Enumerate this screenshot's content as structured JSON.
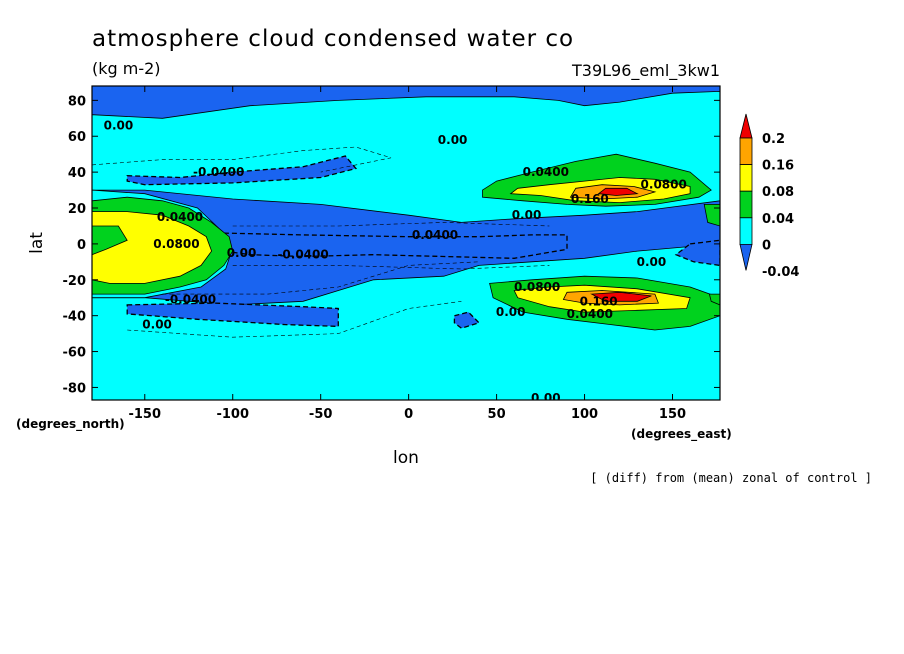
{
  "header": {
    "title": "atmosphere cloud condensed water co",
    "units": "(kg m-2)",
    "run_id": "T39L96_eml_3kw1",
    "note": "[ (diff) from (mean) zonal of control ]"
  },
  "colors": {
    "level_fills": [
      "#1a64f0",
      "#00ffff",
      "#00d21e",
      "#ffff00",
      "#ffa500",
      "#f00000"
    ],
    "ocean_bg": "#1a64f0"
  },
  "chart_data": {
    "type": "heatmap",
    "title": "atmosphere cloud condensed water co",
    "subtitle": "(kg m-2)",
    "xlabel": "lon",
    "ylabel": "lat",
    "xlim": [
      -180,
      177
    ],
    "ylim": [
      -87,
      88
    ],
    "x_ticks": [
      -150,
      -100,
      -50,
      0,
      50,
      100,
      150
    ],
    "y_ticks": [
      80,
      60,
      40,
      20,
      0,
      -20,
      -40,
      -60,
      -80
    ],
    "x_tick_labels": [
      "-150",
      "-100",
      "-50",
      "0",
      "50",
      "100",
      "150"
    ],
    "y_tick_labels": [
      "80",
      "60",
      "40",
      "20",
      "0",
      "-20",
      "-40",
      "-60",
      "-80"
    ],
    "x_unit_label": "(degrees_east)",
    "y_unit_label": "(degrees_north)",
    "colorbar": {
      "levels": [
        -0.04,
        0,
        0.04,
        0.08,
        0.16,
        0.2
      ],
      "labels": [
        "-0.04",
        "0",
        "0.04",
        "0.08",
        "0.16",
        "0.2"
      ],
      "colors": [
        "#1a64f0",
        "#00ffff",
        "#00d21e",
        "#ffff00",
        "#ffa500",
        "#f00000"
      ]
    },
    "contour_labels": [
      {
        "text": "0.00",
        "lon": -165,
        "lat": 66
      },
      {
        "text": "0.00",
        "lon": 25,
        "lat": 58
      },
      {
        "text": "-0.0400",
        "lon": -108,
        "lat": 40
      },
      {
        "text": "0.0400",
        "lon": 78,
        "lat": 40
      },
      {
        "text": "0.0800",
        "lon": 145,
        "lat": 33
      },
      {
        "text": "0.160",
        "lon": 103,
        "lat": 25
      },
      {
        "text": "0.00",
        "lon": 67,
        "lat": 16
      },
      {
        "text": "0.0400",
        "lon": -130,
        "lat": 15
      },
      {
        "text": "0.0400",
        "lon": 15,
        "lat": 5
      },
      {
        "text": "0.0800",
        "lon": -132,
        "lat": 0
      },
      {
        "text": "0.00",
        "lon": -95,
        "lat": -5
      },
      {
        "text": "-0.0400",
        "lon": -60,
        "lat": -6
      },
      {
        "text": "0.00",
        "lon": 138,
        "lat": -10
      },
      {
        "text": "0.0800",
        "lon": 73,
        "lat": -24
      },
      {
        "text": "-0.0400",
        "lon": -124,
        "lat": -31
      },
      {
        "text": "0.160",
        "lon": 108,
        "lat": -32
      },
      {
        "text": "0.00",
        "lon": 58,
        "lat": -38
      },
      {
        "text": "0.0400",
        "lon": 103,
        "lat": -39
      },
      {
        "text": "0.00",
        "lon": -143,
        "lat": -45
      },
      {
        "text": "0.00",
        "lon": 78,
        "lat": -86
      }
    ]
  }
}
